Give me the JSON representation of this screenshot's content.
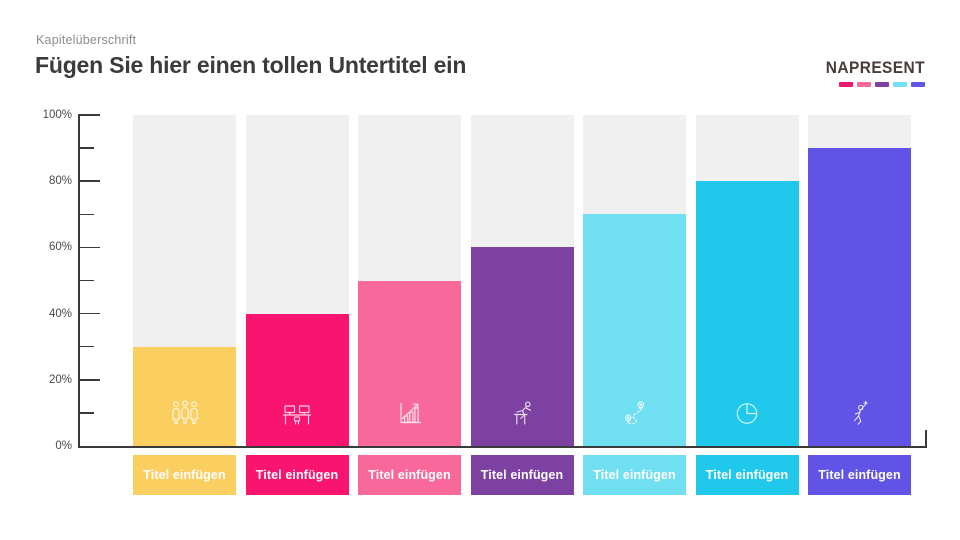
{
  "header": {
    "eyebrow": "Kapitelüberschrift",
    "title": "Fügen Sie hier einen tollen Untertitel ein"
  },
  "brand": {
    "name": "NAPRESENT",
    "text_color": "#4A3A3A",
    "dash_colors": [
      "#F5146E",
      "#F7699A",
      "#8040A4",
      "#72DFF2",
      "#6155E5"
    ]
  },
  "chart_data": {
    "type": "bar",
    "title": "",
    "xlabel": "",
    "ylabel": "",
    "unit": "%",
    "ylim": [
      0,
      100
    ],
    "grid": false,
    "legend": false,
    "categories": [
      "Titel einfügen",
      "Titel einfügen",
      "Titel einfügen",
      "Titel einfügen",
      "Titel einfügen",
      "Titel einfügen",
      "Titel einfügen"
    ],
    "values": [
      30,
      40,
      50,
      60,
      70,
      80,
      90
    ],
    "y_tick_labels": [
      "0%",
      "20%",
      "40%",
      "60%",
      "80%",
      "100%"
    ],
    "y_major_step": 20,
    "y_minor_step": 10,
    "bar_colors": [
      "#FBCE60",
      "#F9146F",
      "#F8689A",
      "#7D41A1",
      "#70DFF2",
      "#20C9EC",
      "#6153E5"
    ],
    "track_color": "#F0F0F0",
    "axis_color": "#3A3A3A",
    "icons": [
      "team-icon",
      "meeting-icon",
      "growth-chart-icon",
      "hurdle-icon",
      "route-icon",
      "pie-chart-icon",
      "winner-icon"
    ]
  }
}
